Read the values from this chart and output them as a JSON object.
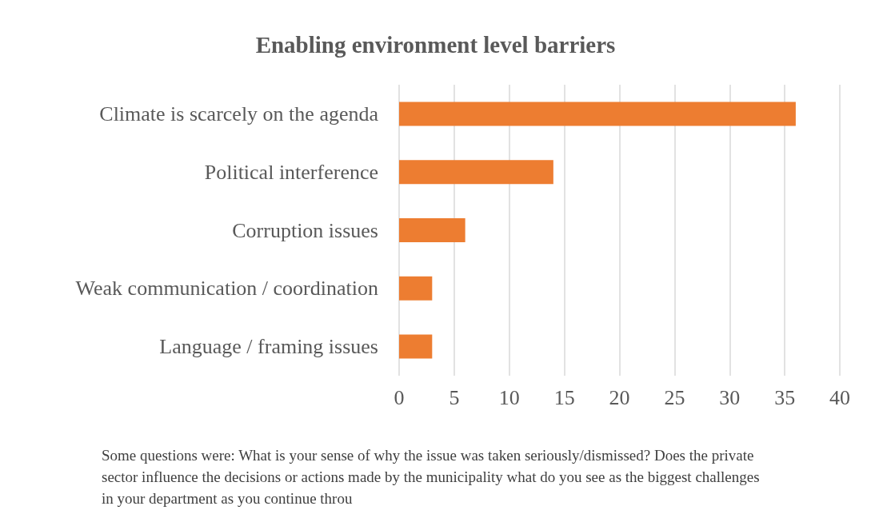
{
  "chart_data": {
    "type": "bar",
    "orientation": "horizontal",
    "title": "Enabling environment level barriers",
    "categories": [
      "Climate is scarcely on the agenda",
      "Political interference",
      "Corruption issues",
      "Weak communication / coordination",
      "Language / framing issues"
    ],
    "values": [
      36,
      14,
      6,
      3,
      3
    ],
    "color": "#ed7d31",
    "xlim": [
      0,
      40
    ],
    "xticks": [
      0,
      5,
      10,
      15,
      20,
      25,
      30,
      35,
      40
    ],
    "grid": "x",
    "annotations": [
      "Some questions were: What is your sense of why the issue was taken seriously/dismissed? Does the private sector influence the decisions or actions made by the municipality what do you see as the biggest challenges in your department as you continue throu"
    ]
  }
}
